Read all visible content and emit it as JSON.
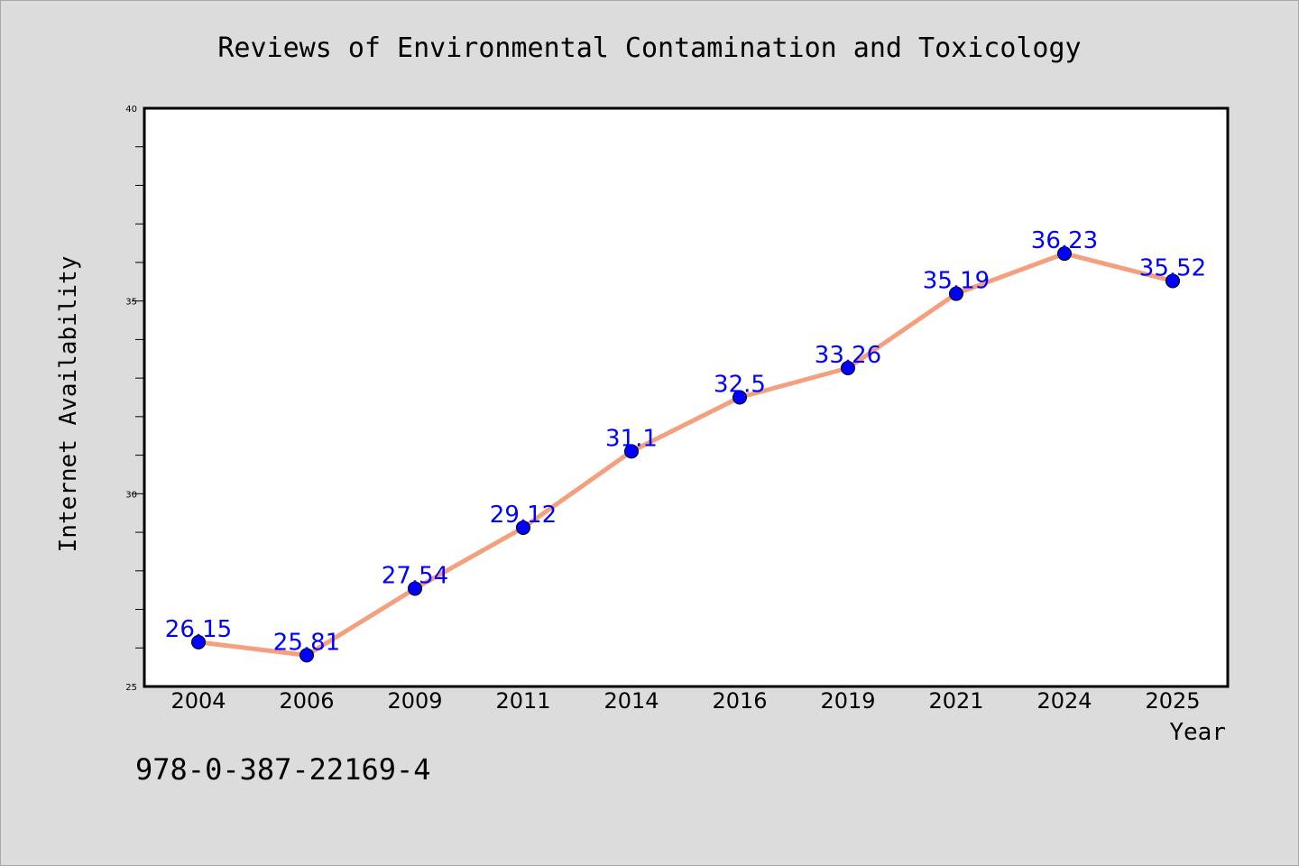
{
  "chart_data": {
    "type": "line",
    "title": "Reviews of Environmental Contamination and Toxicology",
    "xlabel": "Year",
    "ylabel": "Internet Availability",
    "categories": [
      "2004",
      "2006",
      "2009",
      "2011",
      "2014",
      "2016",
      "2019",
      "2021",
      "2024",
      "2025"
    ],
    "series": [
      {
        "values": [
          26.15,
          25.81,
          27.54,
          29.12,
          31.1,
          32.5,
          33.26,
          35.19,
          36.23,
          35.52
        ],
        "labels": [
          "26.15",
          "25.81",
          "27.54",
          "29.12",
          "31.1",
          "32.5",
          "33.26",
          "35.19",
          "36.23",
          "35.52"
        ]
      }
    ],
    "ylim": [
      25,
      40
    ],
    "yticks": [
      "25",
      "30",
      "35",
      "40"
    ],
    "grid": false,
    "colors": {
      "line": "#f4a07e",
      "marker": "#0000ff",
      "label": "#0000ff",
      "background": "#dcdcdc",
      "plot_background": "#ffffff"
    }
  },
  "footnote": "978-0-387-22169-4"
}
